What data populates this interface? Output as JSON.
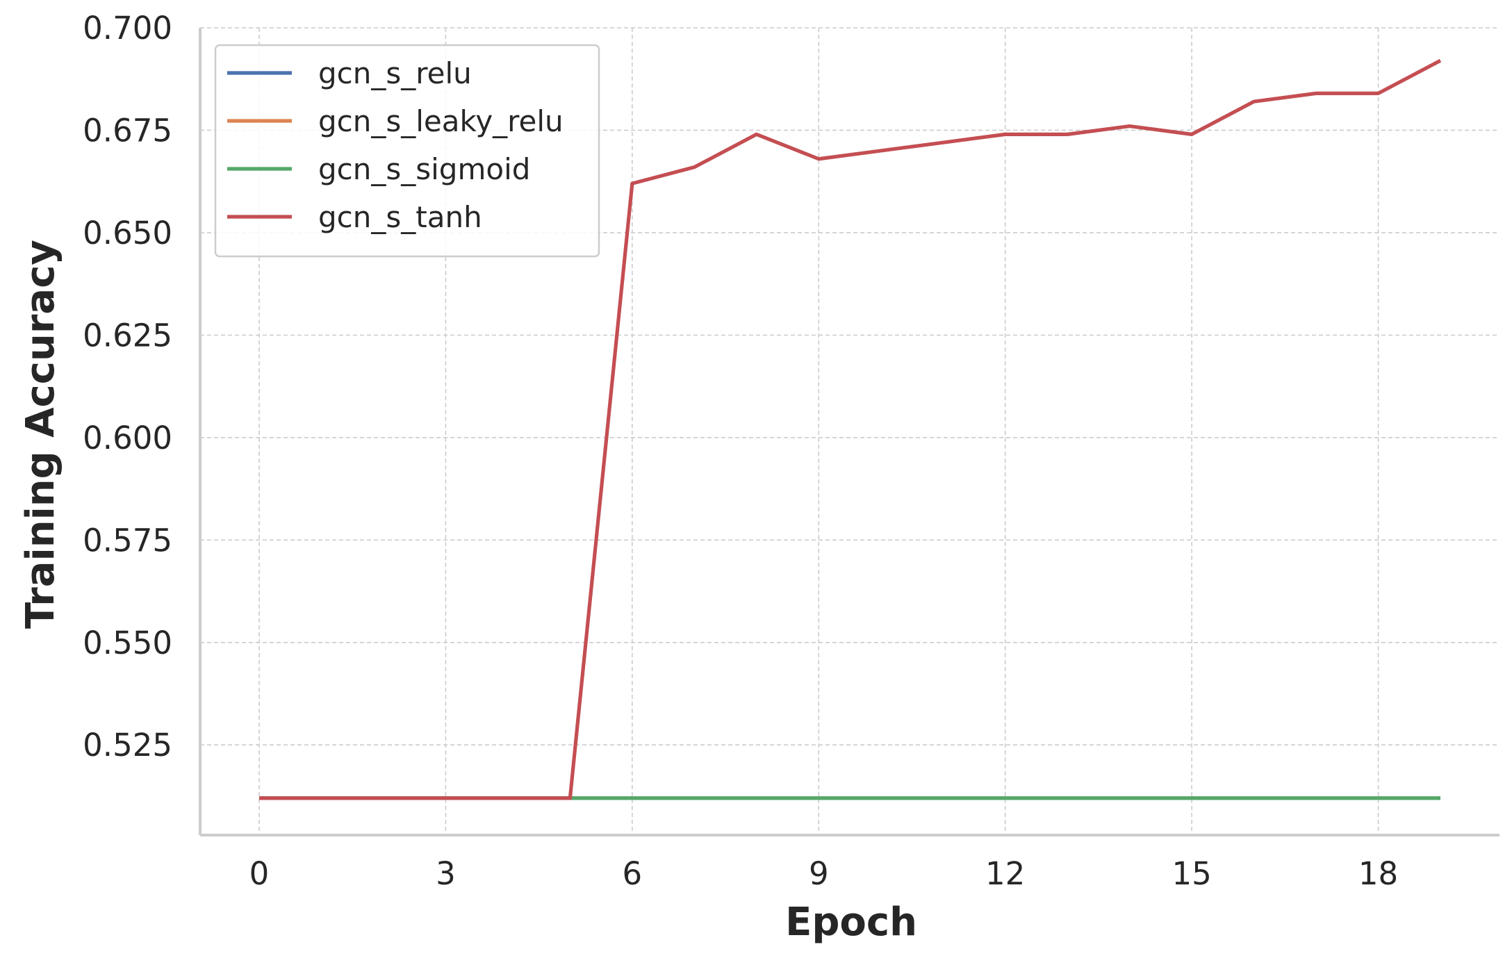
{
  "chart_data": {
    "type": "line",
    "title": "",
    "xlabel": "Epoch",
    "ylabel": "Training Accuracy",
    "xlim": [
      -0.95,
      19.95
    ],
    "ylim": [
      0.503,
      0.7
    ],
    "x_ticks": [
      0,
      3,
      6,
      9,
      12,
      15,
      18
    ],
    "y_ticks": [
      0.525,
      0.55,
      0.575,
      0.6,
      0.625,
      0.65,
      0.675,
      0.7
    ],
    "x_tick_labels": [
      "0",
      "3",
      "6",
      "9",
      "12",
      "15",
      "18"
    ],
    "y_tick_labels": [
      "0.525",
      "0.550",
      "0.575",
      "0.600",
      "0.625",
      "0.650",
      "0.675",
      "0.700"
    ],
    "grid": true,
    "legend_position": "top-left",
    "x": [
      0,
      1,
      2,
      3,
      4,
      5,
      6,
      7,
      8,
      9,
      10,
      11,
      12,
      13,
      14,
      15,
      16,
      17,
      18,
      19
    ],
    "series": [
      {
        "name": "gcn_s_relu",
        "color": "#4c72b0",
        "values": [
          0.512,
          0.512,
          0.512,
          0.512,
          0.512,
          0.512,
          0.512,
          0.512,
          0.512,
          0.512,
          0.512,
          0.512,
          0.512,
          0.512,
          0.512,
          0.512,
          0.512,
          0.512,
          0.512,
          0.512
        ]
      },
      {
        "name": "gcn_s_leaky_relu",
        "color": "#dd8452",
        "values": [
          0.512,
          0.512,
          0.512,
          0.512,
          0.512,
          0.512,
          0.512,
          0.512,
          0.512,
          0.512,
          0.512,
          0.512,
          0.512,
          0.512,
          0.512,
          0.512,
          0.512,
          0.512,
          0.512,
          0.512
        ]
      },
      {
        "name": "gcn_s_sigmoid",
        "color": "#55a868",
        "values": [
          0.512,
          0.512,
          0.512,
          0.512,
          0.512,
          0.512,
          0.512,
          0.512,
          0.512,
          0.512,
          0.512,
          0.512,
          0.512,
          0.512,
          0.512,
          0.512,
          0.512,
          0.512,
          0.512,
          0.512
        ]
      },
      {
        "name": "gcn_s_tanh",
        "color": "#c44e52",
        "values": [
          0.512,
          0.512,
          0.512,
          0.512,
          0.512,
          0.512,
          0.662,
          0.666,
          0.674,
          0.668,
          0.67,
          0.672,
          0.674,
          0.674,
          0.676,
          0.674,
          0.682,
          0.684,
          0.684,
          0.692
        ]
      }
    ]
  }
}
